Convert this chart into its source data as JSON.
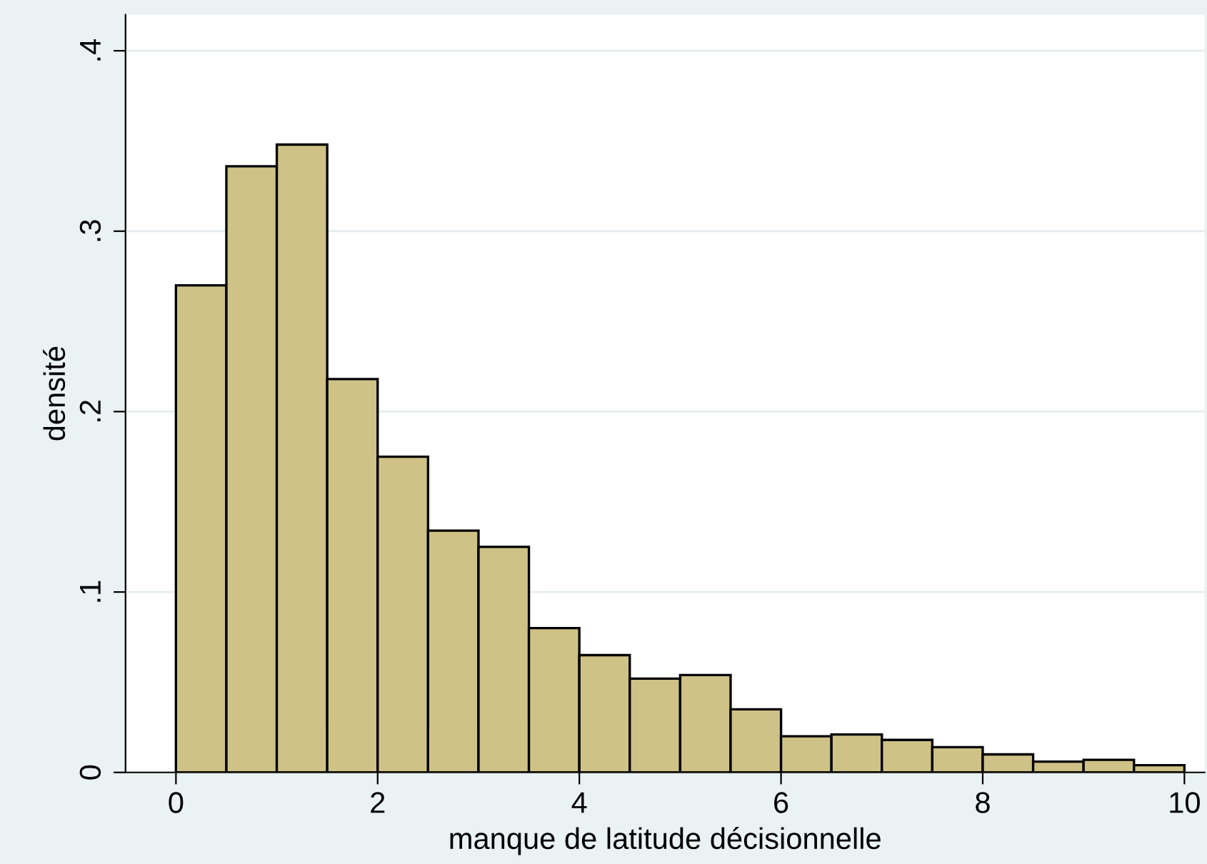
{
  "chart_data": {
    "type": "histogram",
    "xlabel": "manque de latitude décisionnelle",
    "ylabel": "densité",
    "bins": [
      0,
      0.5,
      1,
      1.5,
      2,
      2.5,
      3,
      3.5,
      4,
      4.5,
      5,
      5.5,
      6,
      6.5,
      7,
      7.5,
      8,
      8.5,
      9,
      9.5,
      10
    ],
    "values": [
      0.27,
      0.336,
      0.348,
      0.218,
      0.175,
      0.134,
      0.125,
      0.08,
      0.065,
      0.052,
      0.054,
      0.035,
      0.02,
      0.021,
      0.018,
      0.014,
      0.01,
      0.006,
      0.007,
      0.004
    ],
    "color": "#cfc287",
    "xlim": [
      -0.5,
      10.2
    ],
    "ylim": [
      0,
      0.42
    ],
    "xticks": [
      0,
      2,
      4,
      6,
      8,
      10
    ],
    "yticks": [
      {
        "value": 0,
        "label": "0"
      },
      {
        "value": 0.1,
        "label": ".1"
      },
      {
        "value": 0.2,
        "label": ".2"
      },
      {
        "value": 0.3,
        "label": ".3"
      },
      {
        "value": 0.4,
        "label": ".4"
      }
    ],
    "grid": "y"
  }
}
